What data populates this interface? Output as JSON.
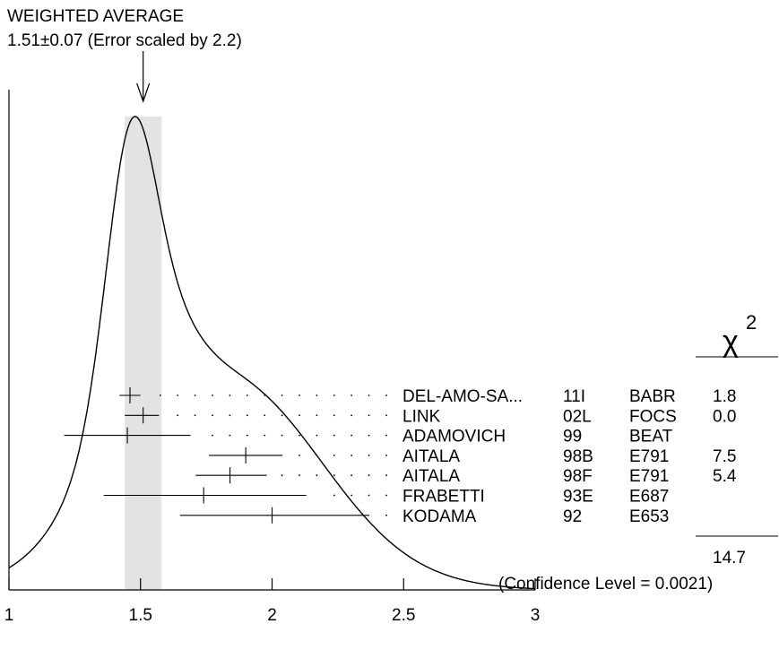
{
  "chart_data": {
    "type": "scatter",
    "title_line1": "WEIGHTED AVERAGE",
    "title_line2": "1.51±0.07 (Error scaled by 2.2)",
    "weighted_average": {
      "value": 1.51,
      "error": 0.07
    },
    "xlim": [
      1,
      3
    ],
    "x_ticks": [
      {
        "value": 1,
        "label": "1"
      },
      {
        "value": 1.5,
        "label": "1.5"
      },
      {
        "value": 2,
        "label": "2"
      },
      {
        "value": 2.5,
        "label": "2.5"
      },
      {
        "value": 3,
        "label": "3"
      }
    ],
    "chi2_header": "χ",
    "chi2_sup": "2",
    "chi2_total": "14.7",
    "confidence_level": "(Confidence Level = 0.0021)",
    "measurements": [
      {
        "author": "DEL-AMO-SA...",
        "year": "11I",
        "experiment": "BABR",
        "chi2": "1.8",
        "value": 1.46,
        "low": 1.42,
        "high": 1.5
      },
      {
        "author": "LINK",
        "year": "02L",
        "experiment": "FOCS",
        "chi2": "0.0",
        "value": 1.51,
        "low": 1.44,
        "high": 1.57
      },
      {
        "author": "ADAMOVICH",
        "year": "99",
        "experiment": "BEAT",
        "chi2": "",
        "value": 1.45,
        "low": 1.21,
        "high": 1.69
      },
      {
        "author": "AITALA",
        "year": "98B",
        "experiment": "E791",
        "chi2": "7.5",
        "value": 1.9,
        "low": 1.76,
        "high": 2.04
      },
      {
        "author": "AITALA",
        "year": "98F",
        "experiment": "E791",
        "chi2": "5.4",
        "value": 1.84,
        "low": 1.71,
        "high": 1.98
      },
      {
        "author": "FRABETTI",
        "year": "93E",
        "experiment": "E687",
        "chi2": "",
        "value": 1.74,
        "low": 1.36,
        "high": 2.13
      },
      {
        "author": "KODAMA",
        "year": "92",
        "experiment": "E653",
        "chi2": "",
        "value": 2.0,
        "low": 1.65,
        "high": 2.37
      }
    ]
  }
}
